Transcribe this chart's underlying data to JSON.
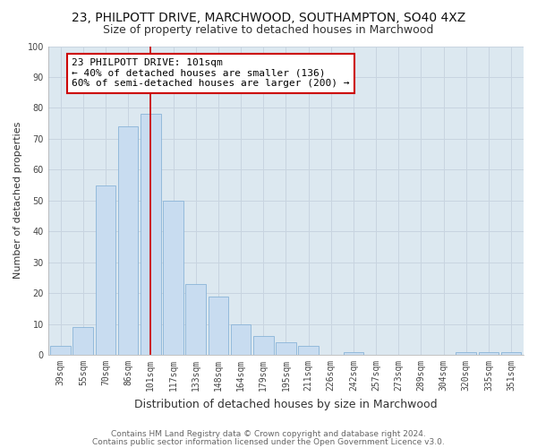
{
  "title": "23, PHILPOTT DRIVE, MARCHWOOD, SOUTHAMPTON, SO40 4XZ",
  "subtitle": "Size of property relative to detached houses in Marchwood",
  "xlabel": "Distribution of detached houses by size in Marchwood",
  "ylabel": "Number of detached properties",
  "bar_labels": [
    "39sqm",
    "55sqm",
    "70sqm",
    "86sqm",
    "101sqm",
    "117sqm",
    "133sqm",
    "148sqm",
    "164sqm",
    "179sqm",
    "195sqm",
    "211sqm",
    "226sqm",
    "242sqm",
    "257sqm",
    "273sqm",
    "289sqm",
    "304sqm",
    "320sqm",
    "335sqm",
    "351sqm"
  ],
  "bar_values": [
    3,
    9,
    55,
    74,
    78,
    50,
    23,
    19,
    10,
    6,
    4,
    3,
    0,
    1,
    0,
    0,
    0,
    0,
    1,
    1,
    1
  ],
  "bar_color": "#c8dcf0",
  "bar_edge_color": "#8ab4d8",
  "vline_x_index": 4,
  "vline_color": "#cc0000",
  "annotation_text": "23 PHILPOTT DRIVE: 101sqm\n← 40% of detached houses are smaller (136)\n60% of semi-detached houses are larger (200) →",
  "annotation_box_color": "#ffffff",
  "annotation_box_edge_color": "#cc0000",
  "ylim": [
    0,
    100
  ],
  "yticks": [
    0,
    10,
    20,
    30,
    40,
    50,
    60,
    70,
    80,
    90,
    100
  ],
  "grid_color": "#c8d4e0",
  "plot_bg_color": "#dce8f0",
  "fig_bg_color": "#ffffff",
  "footer_line1": "Contains HM Land Registry data © Crown copyright and database right 2024.",
  "footer_line2": "Contains public sector information licensed under the Open Government Licence v3.0.",
  "title_fontsize": 10,
  "subtitle_fontsize": 9,
  "xlabel_fontsize": 9,
  "ylabel_fontsize": 8,
  "tick_fontsize": 7,
  "annotation_fontsize": 8,
  "footer_fontsize": 6.5
}
